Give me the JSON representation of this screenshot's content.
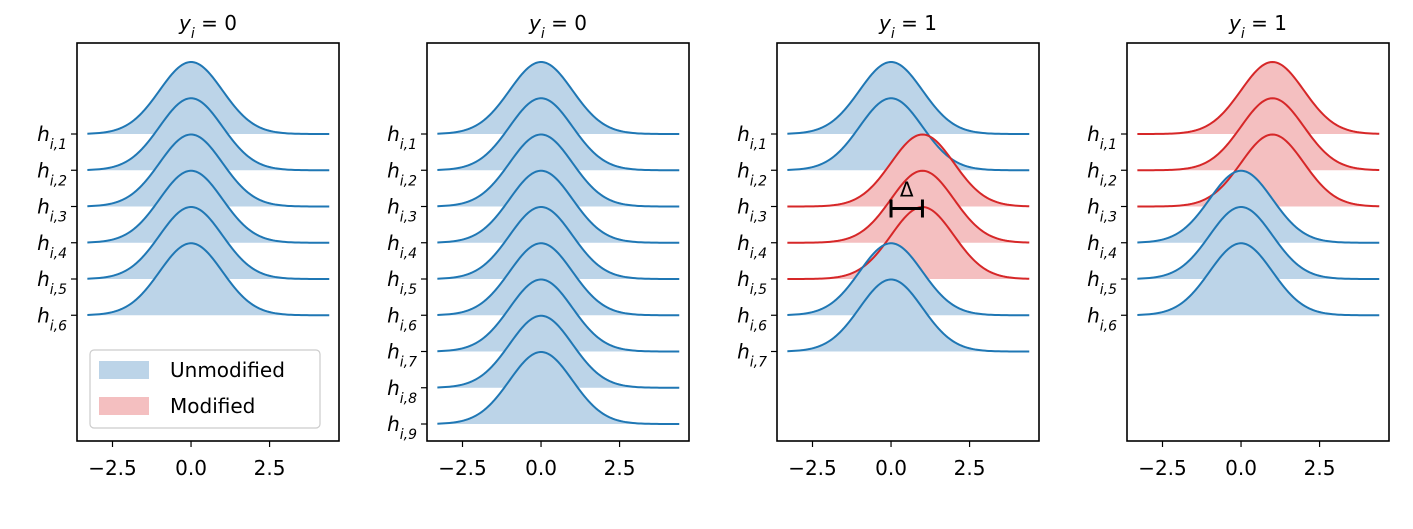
{
  "chart_data": [
    {
      "type": "ridgeline",
      "title": {
        "base": "y",
        "sub": "i",
        "rest": " = 0"
      },
      "groups": [
        {
          "name": "Unmodified",
          "color": "#1f77b4",
          "fill": "#bcd4e8"
        },
        {
          "name": "Modified",
          "color": "#d62728",
          "fill": "#f4bfc0"
        }
      ],
      "legend": "lower left",
      "sigma": 1,
      "x_range": [
        -3.3,
        4.4
      ],
      "xlim": [
        -3.63,
        4.71
      ],
      "xticks": [
        {
          "value": -2.5,
          "label": "−2.5"
        },
        {
          "value": 0,
          "label": "0.0"
        },
        {
          "value": 2.5,
          "label": "2.5"
        }
      ],
      "rows": [
        {
          "label": {
            "base": "h",
            "sub": "i,1"
          },
          "mean": 0,
          "group": 0
        },
        {
          "label": {
            "base": "h",
            "sub": "i,2"
          },
          "mean": 0,
          "group": 0
        },
        {
          "label": {
            "base": "h",
            "sub": "i,3"
          },
          "mean": 0,
          "group": 0
        },
        {
          "label": {
            "base": "h",
            "sub": "i,4"
          },
          "mean": 0,
          "group": 0
        },
        {
          "label": {
            "base": "h",
            "sub": "i,5"
          },
          "mean": 0,
          "group": 0
        },
        {
          "label": {
            "base": "h",
            "sub": "i,6"
          },
          "mean": 0,
          "group": 0
        }
      ]
    },
    {
      "type": "ridgeline",
      "title": {
        "base": "y",
        "sub": "i",
        "rest": " = 0"
      },
      "sigma": 1,
      "x_range": [
        -3.3,
        4.4
      ],
      "xlim": [
        -3.63,
        4.71
      ],
      "xticks": [
        {
          "value": -2.5,
          "label": "−2.5"
        },
        {
          "value": 0,
          "label": "0.0"
        },
        {
          "value": 2.5,
          "label": "2.5"
        }
      ],
      "rows": [
        {
          "label": {
            "base": "h",
            "sub": "i,1"
          },
          "mean": 0,
          "group": 0
        },
        {
          "label": {
            "base": "h",
            "sub": "i,2"
          },
          "mean": 0,
          "group": 0
        },
        {
          "label": {
            "base": "h",
            "sub": "i,3"
          },
          "mean": 0,
          "group": 0
        },
        {
          "label": {
            "base": "h",
            "sub": "i,4"
          },
          "mean": 0,
          "group": 0
        },
        {
          "label": {
            "base": "h",
            "sub": "i,5"
          },
          "mean": 0,
          "group": 0
        },
        {
          "label": {
            "base": "h",
            "sub": "i,6"
          },
          "mean": 0,
          "group": 0
        },
        {
          "label": {
            "base": "h",
            "sub": "i,7"
          },
          "mean": 0,
          "group": 0
        },
        {
          "label": {
            "base": "h",
            "sub": "i,8"
          },
          "mean": 0,
          "group": 0
        },
        {
          "label": {
            "base": "h",
            "sub": "i,9"
          },
          "mean": 0,
          "group": 0
        }
      ]
    },
    {
      "type": "ridgeline",
      "title": {
        "base": "y",
        "sub": "i",
        "rest": " = 1"
      },
      "sigma": 1,
      "x_range": [
        -3.3,
        4.4
      ],
      "xlim": [
        -3.63,
        4.71
      ],
      "xticks": [
        {
          "value": -2.5,
          "label": "−2.5"
        },
        {
          "value": 0,
          "label": "0.0"
        },
        {
          "value": 2.5,
          "label": "2.5"
        }
      ],
      "annotation": {
        "text": "Δ",
        "from": 0,
        "to": 1,
        "row": 3
      },
      "rows": [
        {
          "label": {
            "base": "h",
            "sub": "i,1"
          },
          "mean": 0,
          "group": 0
        },
        {
          "label": {
            "base": "h",
            "sub": "i,2"
          },
          "mean": 0,
          "group": 0
        },
        {
          "label": {
            "base": "h",
            "sub": "i,3"
          },
          "mean": 1,
          "group": 1
        },
        {
          "label": {
            "base": "h",
            "sub": "i,4"
          },
          "mean": 1,
          "group": 1
        },
        {
          "label": {
            "base": "h",
            "sub": "i,5"
          },
          "mean": 1,
          "group": 1
        },
        {
          "label": {
            "base": "h",
            "sub": "i,6"
          },
          "mean": 0,
          "group": 0
        },
        {
          "label": {
            "base": "h",
            "sub": "i,7"
          },
          "mean": 0,
          "group": 0
        }
      ]
    },
    {
      "type": "ridgeline",
      "title": {
        "base": "y",
        "sub": "i",
        "rest": " = 1"
      },
      "sigma": 1,
      "x_range": [
        -3.3,
        4.4
      ],
      "xlim": [
        -3.63,
        4.71
      ],
      "xticks": [
        {
          "value": -2.5,
          "label": "−2.5"
        },
        {
          "value": 0,
          "label": "0.0"
        },
        {
          "value": 2.5,
          "label": "2.5"
        }
      ],
      "rows": [
        {
          "label": {
            "base": "h",
            "sub": "i,1"
          },
          "mean": 1,
          "group": 1
        },
        {
          "label": {
            "base": "h",
            "sub": "i,2"
          },
          "mean": 1,
          "group": 1
        },
        {
          "label": {
            "base": "h",
            "sub": "i,3"
          },
          "mean": 1,
          "group": 1
        },
        {
          "label": {
            "base": "h",
            "sub": "i,4"
          },
          "mean": 0,
          "group": 0
        },
        {
          "label": {
            "base": "h",
            "sub": "i,5"
          },
          "mean": 0,
          "group": 0
        },
        {
          "label": {
            "base": "h",
            "sub": "i,6"
          },
          "mean": 0,
          "group": 0
        }
      ]
    }
  ]
}
